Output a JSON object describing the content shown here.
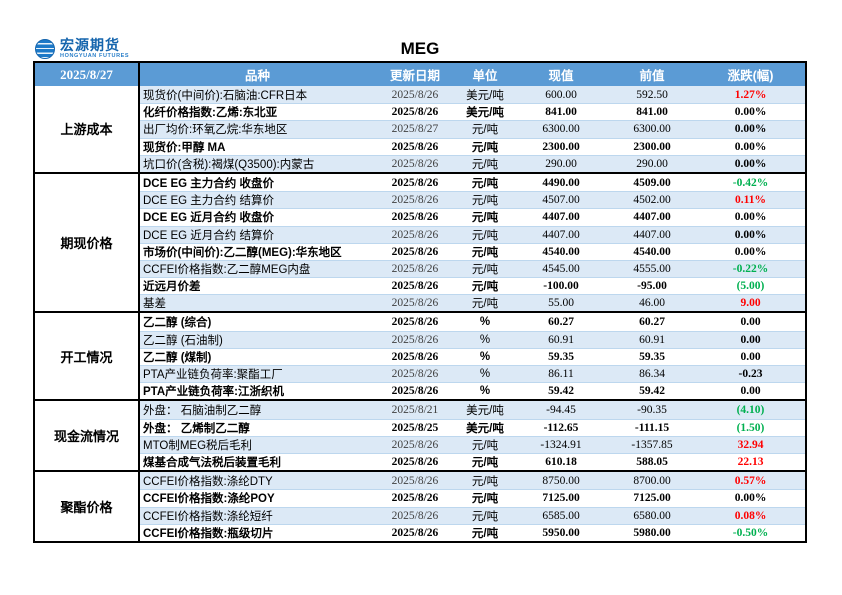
{
  "logo": {
    "name": "宏源期货",
    "subtitle": "HONGYUAN FUTURES"
  },
  "title": "MEG",
  "header": {
    "date": "2025/8/27",
    "columns": [
      "品种",
      "更新日期",
      "单位",
      "现值",
      "前值",
      "涨跌(幅)"
    ]
  },
  "colors": {
    "header_bg": "#5B9BD5",
    "band_bg": "#DCE9F6",
    "up": "#FF0000",
    "down": "#00B050",
    "flat": "#000000"
  },
  "sections": [
    {
      "label": "上游成本",
      "rows": [
        {
          "name": "现货价(中间价):石脑油:CFR日本",
          "date": "2025/8/26",
          "unit": "美元/吨",
          "current": "600.00",
          "previous": "592.50",
          "change": "1.27%",
          "dir": "up"
        },
        {
          "name": "化纤价格指数:乙烯:东北亚",
          "date": "2025/8/26",
          "unit": "美元/吨",
          "current": "841.00",
          "previous": "841.00",
          "change": "0.00%",
          "dir": "flat"
        },
        {
          "name": "出厂均价:环氧乙烷:华东地区",
          "date": "2025/8/27",
          "unit": "元/吨",
          "current": "6300.00",
          "previous": "6300.00",
          "change": "0.00%",
          "dir": "flat"
        },
        {
          "name": "现货价:甲醇 MA",
          "date": "2025/8/26",
          "unit": "元/吨",
          "current": "2300.00",
          "previous": "2300.00",
          "change": "0.00%",
          "dir": "flat"
        },
        {
          "name": "坑口价(含税):褐煤(Q3500):内蒙古",
          "date": "2025/8/26",
          "unit": "元/吨",
          "current": "290.00",
          "previous": "290.00",
          "change": "0.00%",
          "dir": "flat"
        }
      ]
    },
    {
      "label": "期现价格",
      "rows": [
        {
          "name": "DCE EG 主力合约 收盘价",
          "date": "2025/8/26",
          "unit": "元/吨",
          "current": "4490.00",
          "previous": "4509.00",
          "change": "-0.42%",
          "dir": "down"
        },
        {
          "name": "DCE EG 主力合约 结算价",
          "date": "2025/8/26",
          "unit": "元/吨",
          "current": "4507.00",
          "previous": "4502.00",
          "change": "0.11%",
          "dir": "up"
        },
        {
          "name": "DCE EG 近月合约 收盘价",
          "date": "2025/8/26",
          "unit": "元/吨",
          "current": "4407.00",
          "previous": "4407.00",
          "change": "0.00%",
          "dir": "flat"
        },
        {
          "name": "DCE EG 近月合约 结算价",
          "date": "2025/8/26",
          "unit": "元/吨",
          "current": "4407.00",
          "previous": "4407.00",
          "change": "0.00%",
          "dir": "flat"
        },
        {
          "name": "市场价(中间价):乙二醇(MEG):华东地区",
          "date": "2025/8/26",
          "unit": "元/吨",
          "current": "4540.00",
          "previous": "4540.00",
          "change": "0.00%",
          "dir": "flat"
        },
        {
          "name": "CCFEI价格指数:乙二醇MEG内盘",
          "date": "2025/8/26",
          "unit": "元/吨",
          "current": "4545.00",
          "previous": "4555.00",
          "change": "-0.22%",
          "dir": "down"
        },
        {
          "name": "近远月价差",
          "date": "2025/8/26",
          "unit": "元/吨",
          "current": "-100.00",
          "previous": "-95.00",
          "change": "(5.00)",
          "dir": "down"
        },
        {
          "name": "基差",
          "date": "2025/8/26",
          "unit": "元/吨",
          "current": "55.00",
          "previous": "46.00",
          "change": "9.00",
          "dir": "up"
        }
      ]
    },
    {
      "label": "开工情况",
      "rows": [
        {
          "name": "乙二醇 (综合)",
          "date": "2025/8/26",
          "unit": "%",
          "current": "60.27",
          "previous": "60.27",
          "change": "0.00",
          "dir": "flat"
        },
        {
          "name": "乙二醇 (石油制)",
          "date": "2025/8/26",
          "unit": "%",
          "current": "60.91",
          "previous": "60.91",
          "change": "0.00",
          "dir": "flat"
        },
        {
          "name": "乙二醇 (煤制)",
          "date": "2025/8/26",
          "unit": "%",
          "current": "59.35",
          "previous": "59.35",
          "change": "0.00",
          "dir": "flat"
        },
        {
          "name": "PTA产业链负荷率:聚酯工厂",
          "date": "2025/8/26",
          "unit": "%",
          "current": "86.11",
          "previous": "86.34",
          "change": "-0.23",
          "dir": "flat"
        },
        {
          "name": "PTA产业链负荷率:江浙织机",
          "date": "2025/8/26",
          "unit": "%",
          "current": "59.42",
          "previous": "59.42",
          "change": "0.00",
          "dir": "flat"
        }
      ]
    },
    {
      "label": "现金流情况",
      "rows": [
        {
          "name": "外盘： 石脑油制乙二醇",
          "date": "2025/8/21",
          "unit": "美元/吨",
          "current": "-94.45",
          "previous": "-90.35",
          "change": "(4.10)",
          "dir": "down"
        },
        {
          "name": "外盘： 乙烯制乙二醇",
          "date": "2025/8/25",
          "unit": "美元/吨",
          "current": "-112.65",
          "previous": "-111.15",
          "change": "(1.50)",
          "dir": "down"
        },
        {
          "name": "MTO制MEG税后毛利",
          "date": "2025/8/26",
          "unit": "元/吨",
          "current": "-1324.91",
          "previous": "-1357.85",
          "change": "32.94",
          "dir": "up"
        },
        {
          "name": "煤基合成气法税后装置毛利",
          "date": "2025/8/26",
          "unit": "元/吨",
          "current": "610.18",
          "previous": "588.05",
          "change": "22.13",
          "dir": "up"
        }
      ]
    },
    {
      "label": "聚酯价格",
      "rows": [
        {
          "name": "CCFEI价格指数:涤纶DTY",
          "date": "2025/8/26",
          "unit": "元/吨",
          "current": "8750.00",
          "previous": "8700.00",
          "change": "0.57%",
          "dir": "up"
        },
        {
          "name": "CCFEI价格指数:涤纶POY",
          "date": "2025/8/26",
          "unit": "元/吨",
          "current": "7125.00",
          "previous": "7125.00",
          "change": "0.00%",
          "dir": "flat"
        },
        {
          "name": "CCFEI价格指数:涤纶短纤",
          "date": "2025/8/26",
          "unit": "元/吨",
          "current": "6585.00",
          "previous": "6580.00",
          "change": "0.08%",
          "dir": "up"
        },
        {
          "name": "CCFEI价格指数:瓶级切片",
          "date": "2025/8/26",
          "unit": "元/吨",
          "current": "5950.00",
          "previous": "5980.00",
          "change": "-0.50%",
          "dir": "down"
        }
      ]
    }
  ]
}
